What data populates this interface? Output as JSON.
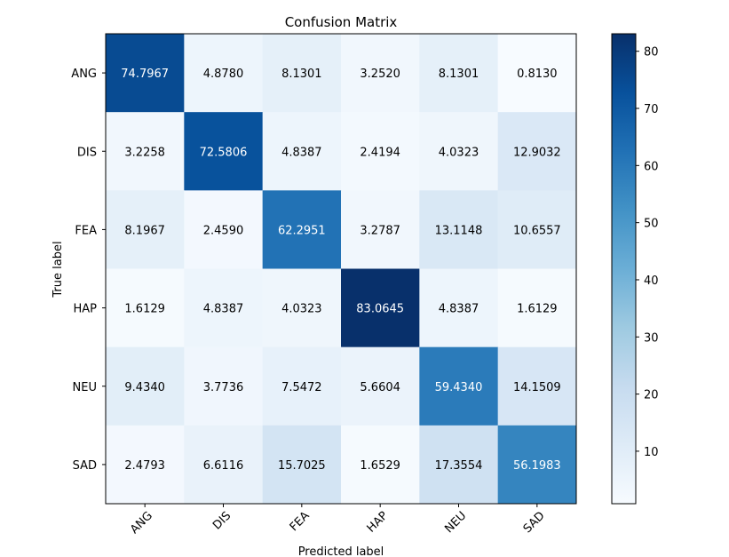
{
  "chart_data": {
    "type": "heatmap",
    "title": "Confusion Matrix",
    "xlabel": "Predicted label",
    "ylabel": "True label",
    "x_categories": [
      "ANG",
      "DIS",
      "FEA",
      "HAP",
      "NEU",
      "SAD"
    ],
    "y_categories": [
      "ANG",
      "DIS",
      "FEA",
      "HAP",
      "NEU",
      "SAD"
    ],
    "values": [
      [
        74.7967,
        4.878,
        8.1301,
        3.252,
        8.1301,
        0.813
      ],
      [
        3.2258,
        72.5806,
        4.8387,
        2.4194,
        4.0323,
        12.9032
      ],
      [
        8.1967,
        2.459,
        62.2951,
        3.2787,
        13.1148,
        10.6557
      ],
      [
        1.6129,
        4.8387,
        4.0323,
        83.0645,
        4.8387,
        1.6129
      ],
      [
        9.434,
        3.7736,
        7.5472,
        5.6604,
        59.434,
        14.1509
      ],
      [
        2.4793,
        6.6116,
        15.7025,
        1.6529,
        17.3554,
        56.1983
      ]
    ],
    "value_labels": [
      [
        "74.7967",
        "4.8780",
        "8.1301",
        "3.2520",
        "8.1301",
        "0.8130"
      ],
      [
        "3.2258",
        "72.5806",
        "4.8387",
        "2.4194",
        "4.0323",
        "12.9032"
      ],
      [
        "8.1967",
        "2.4590",
        "62.2951",
        "3.2787",
        "13.1148",
        "10.6557"
      ],
      [
        "1.6129",
        "4.8387",
        "4.0323",
        "83.0645",
        "4.8387",
        "1.6129"
      ],
      [
        "9.4340",
        "3.7736",
        "7.5472",
        "5.6604",
        "59.4340",
        "14.1509"
      ],
      [
        "2.4793",
        "6.6116",
        "15.7025",
        "1.6529",
        "17.3554",
        "56.1983"
      ]
    ],
    "colormap": "Blues",
    "colorbar": {
      "range": [
        0.813,
        83.0645
      ],
      "ticks": [
        10,
        20,
        30,
        40,
        50,
        60,
        70,
        80
      ],
      "tick_labels": [
        "10",
        "20",
        "30",
        "40",
        "50",
        "60",
        "70",
        "80"
      ]
    },
    "grid": false,
    "text_colors": {
      "dark_cell": "#ffffff",
      "light_cell": "#000000"
    }
  }
}
